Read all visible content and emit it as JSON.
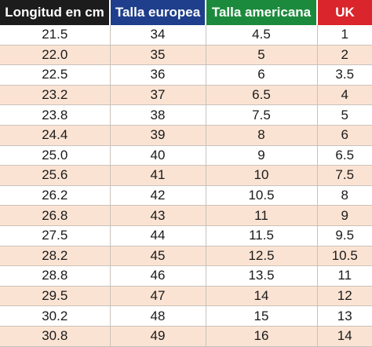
{
  "table": {
    "headers": {
      "cm": "Longitud en cm",
      "eu": "Talla europea",
      "us": "Talla americana",
      "uk": "UK"
    },
    "rows": [
      {
        "cm": "21.5",
        "eu": "34",
        "us": "4.5",
        "uk": "1"
      },
      {
        "cm": "22.0",
        "eu": "35",
        "us": "5",
        "uk": "2"
      },
      {
        "cm": "22.5",
        "eu": "36",
        "us": "6",
        "uk": "3.5"
      },
      {
        "cm": "23.2",
        "eu": "37",
        "us": "6.5",
        "uk": "4"
      },
      {
        "cm": "23.8",
        "eu": "38",
        "us": "7.5",
        "uk": "5"
      },
      {
        "cm": "24.4",
        "eu": "39",
        "us": "8",
        "uk": "6"
      },
      {
        "cm": "25.0",
        "eu": "40",
        "us": "9",
        "uk": "6.5"
      },
      {
        "cm": "25.6",
        "eu": "41",
        "us": "10",
        "uk": "7.5"
      },
      {
        "cm": "26.2",
        "eu": "42",
        "us": "10.5",
        "uk": "8"
      },
      {
        "cm": "26.8",
        "eu": "43",
        "us": "11",
        "uk": "9"
      },
      {
        "cm": "27.5",
        "eu": "44",
        "us": "11.5",
        "uk": "9.5"
      },
      {
        "cm": "28.2",
        "eu": "45",
        "us": "12.5",
        "uk": "10.5"
      },
      {
        "cm": "28.8",
        "eu": "46",
        "us": "13.5",
        "uk": "11"
      },
      {
        "cm": "29.5",
        "eu": "47",
        "us": "14",
        "uk": "12"
      },
      {
        "cm": "30.2",
        "eu": "48",
        "us": "15",
        "uk": "13"
      },
      {
        "cm": "30.8",
        "eu": "49",
        "us": "16",
        "uk": "14"
      }
    ]
  }
}
